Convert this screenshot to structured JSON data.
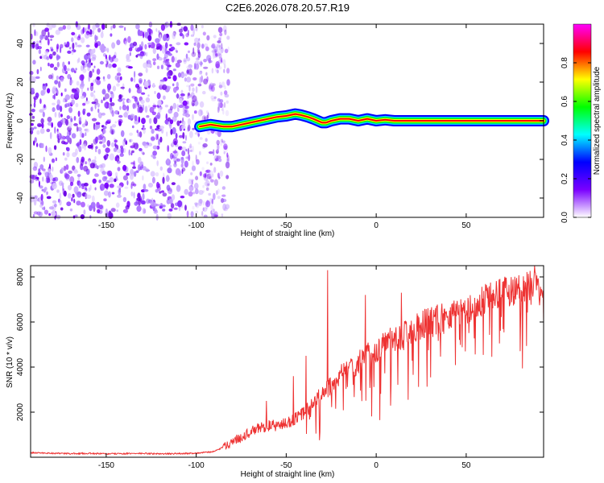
{
  "title": "C2E6.2026.078.20.57.R19",
  "chart_data": [
    {
      "type": "heatmap",
      "xlabel": "Height of straight line (km)",
      "ylabel": "Frequency (Hz)",
      "xlim": [
        -192,
        93
      ],
      "ylim": [
        -50,
        50
      ],
      "x_ticks": [
        -150,
        -100,
        -50,
        0,
        50
      ],
      "y_ticks": [
        -40,
        -20,
        0,
        20,
        40
      ],
      "x_tick_labels": [
        "-150",
        "-100",
        "-50",
        "0",
        "50"
      ],
      "y_tick_labels": [
        "-40",
        "-20",
        "0",
        "20",
        "40"
      ],
      "noise_region_x": [
        -192,
        -82
      ],
      "noise_color": "#7a00ff",
      "signal_track": {
        "x": [
          -98,
          -92,
          -85,
          -80,
          -75,
          -70,
          -65,
          -60,
          -55,
          -50,
          -45,
          -42,
          -38,
          -35,
          -30,
          -28,
          -25,
          -20,
          -15,
          -10,
          -5,
          0,
          5,
          10,
          20,
          40,
          60,
          80,
          93
        ],
        "frequency_hz": [
          -3,
          -2,
          -3,
          -3,
          -2,
          -1,
          0,
          1,
          2,
          2.5,
          3.5,
          3,
          2,
          1,
          -1,
          -1,
          0,
          1,
          1,
          0,
          1,
          0,
          0.5,
          0,
          0,
          0,
          0,
          0,
          0
        ]
      },
      "colorbar": {
        "label": "Normalized spectral amplitude",
        "range": [
          0,
          1
        ],
        "ticks": [
          0.0,
          0.2,
          0.4,
          0.6,
          0.8
        ],
        "tick_labels": [
          "0.0",
          "0.2",
          "0.4",
          "0.6",
          "0.8"
        ],
        "colormap": [
          "#ffffff",
          "#7a00ff",
          "#0000ff",
          "#00ffff",
          "#00ff00",
          "#ffff00",
          "#ff0000",
          "#ff00ff"
        ]
      }
    },
    {
      "type": "line",
      "xlabel": "Height of straight line (km)",
      "ylabel": "SNR (10 * v/v)",
      "xlim": [
        -192,
        93
      ],
      "ylim": [
        0,
        8500
      ],
      "x_ticks": [
        -150,
        -100,
        -50,
        0,
        50
      ],
      "y_ticks": [
        2000,
        4000,
        6000,
        8000
      ],
      "x_tick_labels": [
        "-150",
        "-100",
        "-50",
        "0",
        "50"
      ],
      "y_tick_labels": [
        "2000",
        "4000",
        "6000",
        "8000"
      ],
      "line_color": "#ee3333",
      "series": [
        {
          "name": "SNR",
          "x": [
            -192,
            -180,
            -170,
            -160,
            -150,
            -140,
            -130,
            -120,
            -110,
            -100,
            -90,
            -85,
            -80,
            -75,
            -70,
            -65,
            -60,
            -55,
            -50,
            -45,
            -40,
            -35,
            -30,
            -25,
            -20,
            -15,
            -10,
            -5,
            0,
            5,
            10,
            15,
            20,
            25,
            30,
            35,
            40,
            45,
            50,
            55,
            60,
            65,
            70,
            75,
            80,
            85,
            90,
            93
          ],
          "y": [
            200,
            180,
            160,
            170,
            150,
            160,
            170,
            150,
            160,
            180,
            250,
            450,
            700,
            900,
            1100,
            1300,
            1400,
            1400,
            1500,
            1700,
            2000,
            2400,
            2800,
            3200,
            3600,
            3900,
            4200,
            4500,
            4700,
            5000,
            5200,
            5400,
            5600,
            5800,
            6000,
            6100,
            6300,
            6500,
            6600,
            6800,
            7000,
            7100,
            7300,
            7400,
            7500,
            7600,
            7700,
            7700
          ]
        }
      ],
      "spikes": [
        {
          "x": -27,
          "y": 8300
        },
        {
          "x": -46,
          "y": 3600
        },
        {
          "x": -6,
          "y": 7200
        },
        {
          "x": 14,
          "y": 7300
        },
        {
          "x": 88,
          "y": 8500
        },
        {
          "x": -61,
          "y": 2500
        },
        {
          "x": -39,
          "y": 4500
        }
      ]
    }
  ]
}
